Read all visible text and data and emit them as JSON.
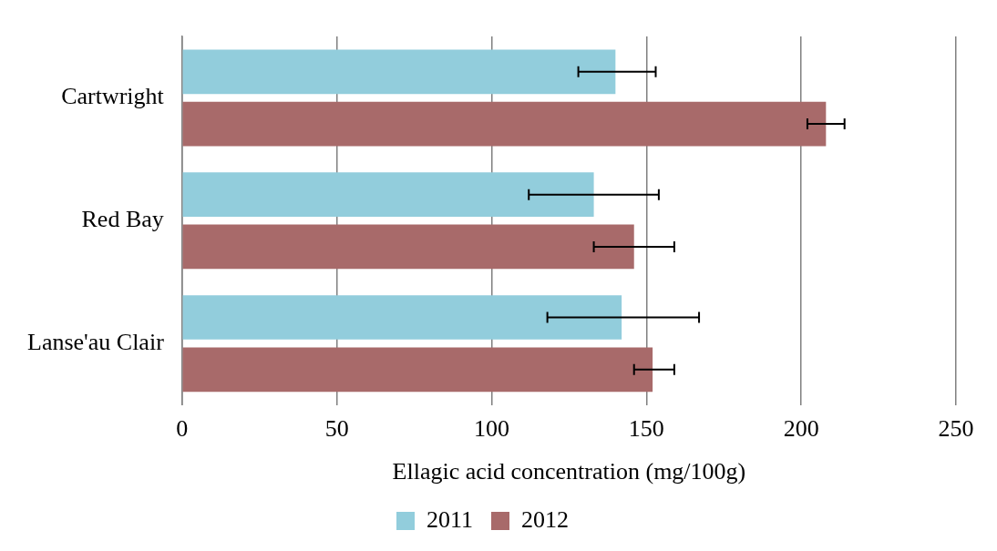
{
  "chart_data": {
    "type": "bar",
    "orientation": "horizontal",
    "xlabel": "Ellagic acid concentration (mg/100g)",
    "categories": [
      "Cartwright",
      "Red Bay",
      "Lanse'au Clair"
    ],
    "series": [
      {
        "name": "2011",
        "color": "#92cddc",
        "values": [
          140,
          133,
          142
        ],
        "errors": [
          [
            128,
            153
          ],
          [
            112,
            154
          ],
          [
            118,
            167
          ]
        ]
      },
      {
        "name": "2012",
        "color": "#a86a6a",
        "values": [
          208,
          146,
          152
        ],
        "errors": [
          [
            202,
            214
          ],
          [
            133,
            159
          ],
          [
            146,
            159
          ]
        ]
      }
    ],
    "xlim": [
      0,
      250
    ],
    "xticks": [
      0,
      50,
      100,
      150,
      200,
      250
    ],
    "grid": "x",
    "legend": "bottom"
  }
}
